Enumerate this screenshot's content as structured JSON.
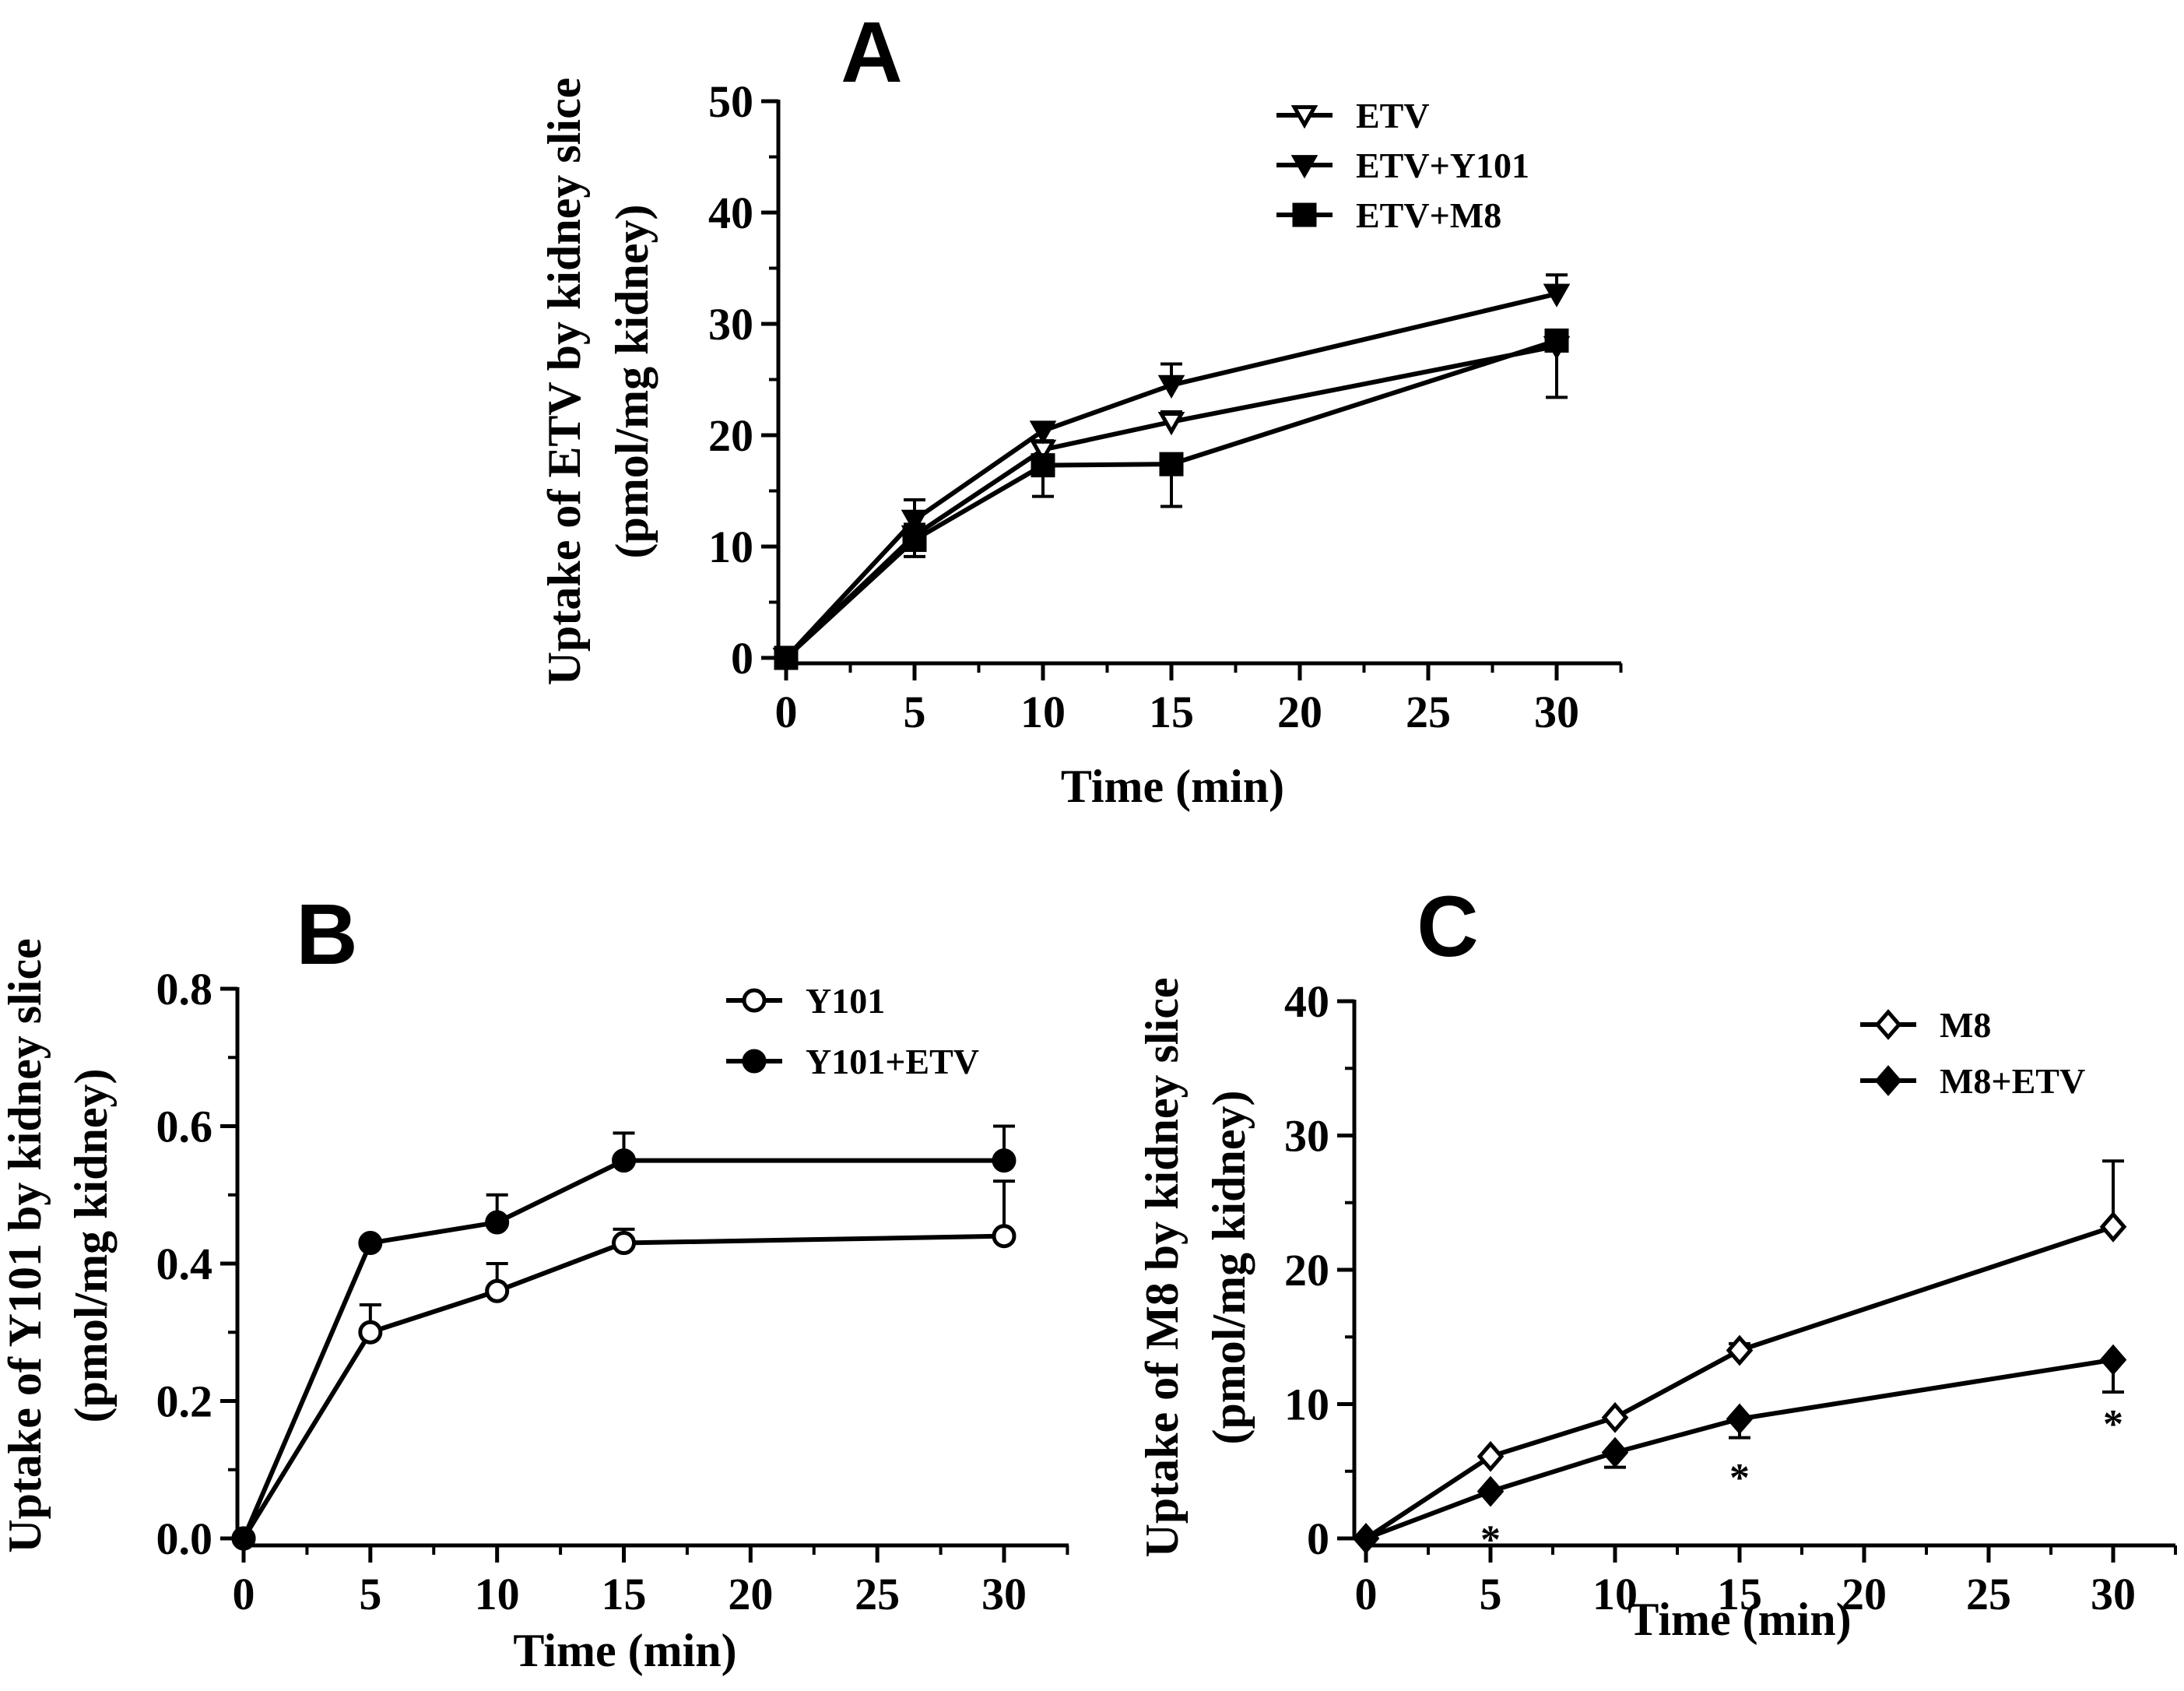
{
  "chart_data": [
    {
      "id": "A",
      "panel_label": "A",
      "type": "line",
      "xlabel": "Time (min)",
      "ylabel_lines": [
        "Uptake of ETV by kidney slice",
        "(pmol/mg kidney)"
      ],
      "xlim": [
        0,
        33
      ],
      "ylim": [
        0,
        50
      ],
      "xticks": [
        0,
        5,
        10,
        15,
        20,
        25,
        30
      ],
      "yticks": [
        0,
        10,
        20,
        30,
        40,
        50
      ],
      "ytick_labels": [
        "0",
        "10",
        "20",
        "30",
        "40",
        "50"
      ],
      "legend_position": "top-right",
      "series": [
        {
          "name": "ETV",
          "marker": "triangle-down-open",
          "x": [
            0,
            5,
            10,
            15,
            30
          ],
          "y": [
            0,
            11.0,
            18.7,
            21.2,
            28.0
          ],
          "err": [
            0,
            1.0,
            0.8,
            0.9,
            0.8
          ]
        },
        {
          "name": "ETV+Y101",
          "marker": "triangle-down-filled",
          "x": [
            0,
            5,
            10,
            15,
            30
          ],
          "y": [
            0,
            12.4,
            20.4,
            24.5,
            32.7
          ],
          "err": [
            0,
            1.8,
            0.7,
            1.9,
            1.7
          ]
        },
        {
          "name": "ETV+M8",
          "marker": "square-filled",
          "x": [
            0,
            5,
            10,
            15,
            30
          ],
          "y": [
            0,
            10.6,
            17.3,
            17.4,
            28.5
          ],
          "err": [
            0,
            1.5,
            2.8,
            3.8,
            5.1
          ],
          "err_dir": [
            0,
            -1,
            -1,
            -1,
            -1
          ]
        }
      ]
    },
    {
      "id": "B",
      "panel_label": "B",
      "type": "line",
      "xlabel": "Time (min)",
      "ylabel_lines": [
        "Uptake of Y101 by kidney slice",
        "(pmol/mg kidney)"
      ],
      "xlim": [
        0,
        33
      ],
      "ylim": [
        0,
        0.8
      ],
      "xticks": [
        0,
        5,
        10,
        15,
        20,
        25,
        30
      ],
      "yticks": [
        0,
        0.2,
        0.4,
        0.6,
        0.8
      ],
      "ytick_labels": [
        "0.0",
        "0.2",
        "0.4",
        "0.6",
        "0.8"
      ],
      "legend_position": "top-right",
      "series": [
        {
          "name": "Y101",
          "marker": "circle-open",
          "x": [
            0,
            5,
            10,
            15,
            30
          ],
          "y": [
            0,
            0.3,
            0.36,
            0.43,
            0.44
          ],
          "err": [
            0,
            0.04,
            0.04,
            0.02,
            0.08
          ]
        },
        {
          "name": "Y101+ETV",
          "marker": "circle-filled",
          "x": [
            0,
            5,
            10,
            15,
            30
          ],
          "y": [
            0,
            0.43,
            0.46,
            0.55,
            0.55
          ],
          "err": [
            0,
            0,
            0.04,
            0.04,
            0.05
          ]
        }
      ]
    },
    {
      "id": "C",
      "panel_label": "C",
      "type": "line",
      "xlabel": "Time (min)",
      "ylabel_lines": [
        "Uptake of M8 by kidney slice",
        "(pmol/mg kidney)"
      ],
      "xlim": [
        0,
        33
      ],
      "ylim": [
        0,
        40
      ],
      "xticks": [
        0,
        5,
        10,
        15,
        20,
        25,
        30
      ],
      "yticks": [
        0,
        10,
        20,
        30,
        40
      ],
      "ytick_labels": [
        "0",
        "10",
        "20",
        "30",
        "40"
      ],
      "legend_position": "top-right",
      "annotations": [
        {
          "text": "*",
          "x": 5,
          "y": 0.2
        },
        {
          "text": "*",
          "x": 15,
          "y": 4.8
        },
        {
          "text": "*",
          "x": 30,
          "y": 8.8
        }
      ],
      "series": [
        {
          "name": "M8",
          "marker": "diamond-open",
          "x": [
            0,
            5,
            10,
            15,
            30
          ],
          "y": [
            0,
            6.1,
            9.0,
            14.0,
            23.2
          ],
          "err": [
            0,
            0,
            0,
            0.5,
            4.9
          ]
        },
        {
          "name": "M8+ETV",
          "marker": "diamond-filled",
          "x": [
            0,
            5,
            10,
            15,
            30
          ],
          "y": [
            0,
            3.5,
            6.4,
            8.9,
            13.3
          ],
          "err": [
            0,
            0,
            1.1,
            1.4,
            2.4
          ],
          "err_dir": [
            0,
            -1,
            -1,
            -1,
            -1
          ]
        }
      ]
    }
  ]
}
